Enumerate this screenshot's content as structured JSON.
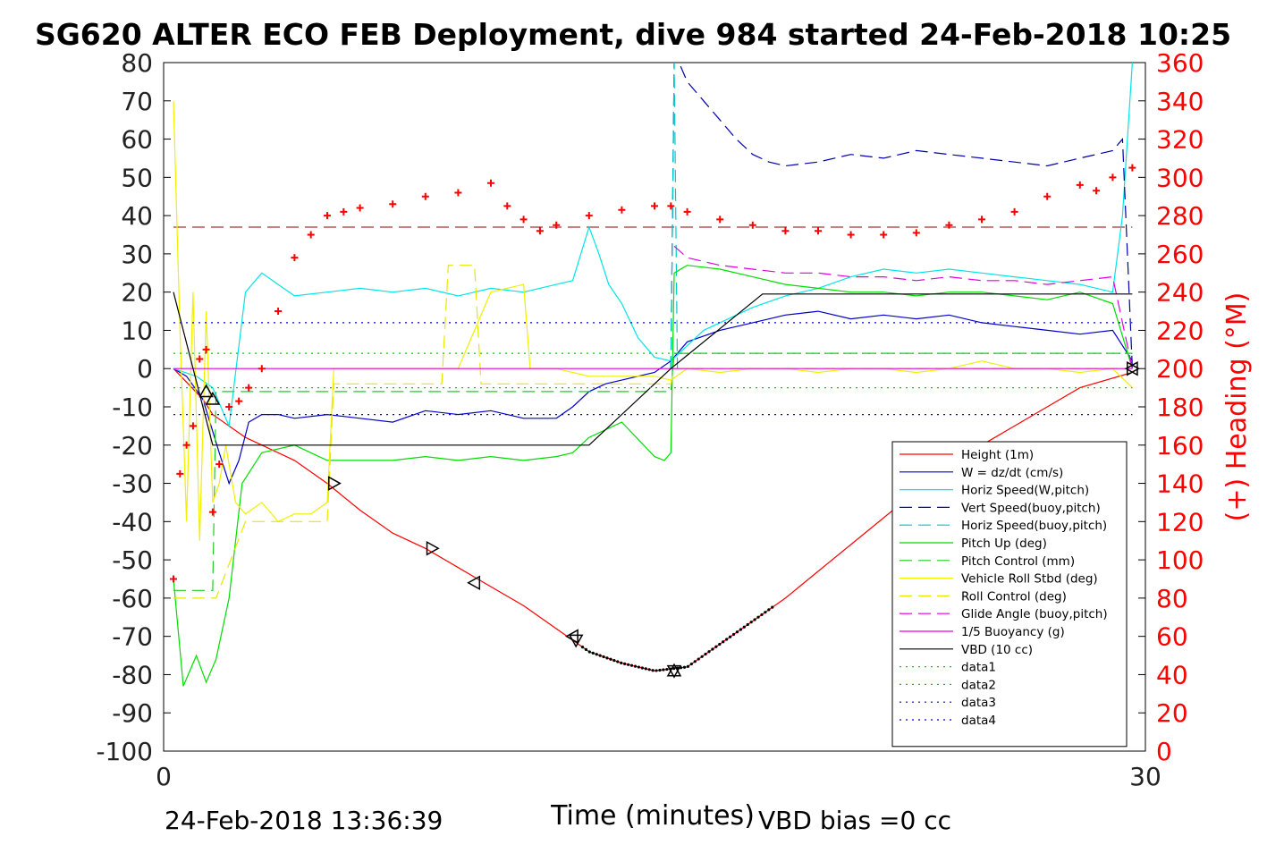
{
  "chart_data": {
    "type": "line",
    "title": "SG620 ALTER ECO FEB Deployment, dive 984 started 24-Feb-2018 10:25",
    "xlabel": "Time (minutes)",
    "ylabel_right": "(+) Heading (°M)",
    "xlim": [
      0,
      30
    ],
    "ylim": [
      -100,
      80
    ],
    "y2lim": [
      0,
      360
    ],
    "x_ticks": [
      "0",
      "30"
    ],
    "y_ticks": [
      "80",
      "70",
      "60",
      "50",
      "40",
      "30",
      "20",
      "10",
      "0",
      "-10",
      "-20",
      "-30",
      "-40",
      "-50",
      "-60",
      "-70",
      "-80",
      "-90",
      "-100"
    ],
    "y2_ticks": [
      "360",
      "340",
      "320",
      "300",
      "280",
      "260",
      "240",
      "220",
      "200",
      "180",
      "160",
      "140",
      "120",
      "100",
      "80",
      "60",
      "40",
      "20",
      "0"
    ],
    "footer_left": "24-Feb-2018 13:36:39",
    "footer_right": "VBD bias =0 cc",
    "legend_placement": "lower-right",
    "colors": {
      "red": "#ff0000",
      "blue": "#0000cc",
      "cyan": "#00e5e5",
      "green": "#00dd00",
      "yellow": "#f0f000",
      "magenta": "#e000e0",
      "black": "#000000",
      "darkred": "#8b0000"
    },
    "series": [
      {
        "name": "Height (1m)",
        "color": "#ff0000",
        "dash": "solid",
        "x": [
          0.3,
          1.2,
          1.5,
          2.5,
          4,
          5,
          6,
          7,
          8,
          9,
          10,
          11,
          12,
          13,
          14,
          15,
          16,
          17,
          18,
          19,
          20,
          21,
          22,
          23,
          24,
          25,
          26,
          27,
          28,
          29.6
        ],
        "y": [
          0,
          -8,
          -12,
          -18,
          -24,
          -30,
          -37,
          -43,
          -47,
          -52,
          -57,
          -62,
          -68,
          -74,
          -77,
          -79,
          -78,
          -72,
          -66,
          -60,
          -53,
          -46,
          -39,
          -32,
          -26,
          -20,
          -15,
          -10,
          -5,
          -1
        ]
      },
      {
        "name": "W = dz/dt (cm/s)",
        "color": "#0000cc",
        "dash": "solid",
        "x": [
          0.3,
          0.7,
          1.2,
          1.7,
          2.0,
          2.3,
          2.6,
          3,
          3.5,
          4,
          5,
          6,
          7,
          8,
          9,
          10,
          11,
          12,
          12.5,
          13,
          13.5,
          14,
          15,
          15.5,
          16,
          17,
          18,
          19,
          20,
          21,
          22,
          23,
          24,
          25,
          26,
          27,
          28,
          29,
          29.6
        ],
        "y": [
          0,
          -2,
          -8,
          -22,
          -30,
          -24,
          -14,
          -12,
          -12,
          -13,
          -12,
          -13,
          -14,
          -11,
          -12,
          -11,
          -13,
          -13,
          -10,
          -6,
          -4,
          -3,
          -1,
          2,
          7,
          10,
          12,
          14,
          15,
          13,
          14,
          13,
          14,
          12,
          11,
          10,
          9,
          10,
          2
        ]
      },
      {
        "name": "Horiz Speed(W,pitch)",
        "color": "#00e5e5",
        "dash": "solid",
        "x": [
          0.3,
          1.0,
          1.5,
          2.0,
          2.5,
          3,
          3.5,
          4,
          5,
          6,
          7,
          8,
          9,
          10,
          11,
          12,
          12.5,
          13,
          13.3,
          13.6,
          14,
          14.5,
          15,
          15.5,
          16,
          16.5,
          17,
          18,
          19,
          20,
          21,
          22,
          23,
          24,
          25,
          26,
          27,
          28,
          29,
          29.3,
          29.6
        ],
        "y": [
          0,
          -2,
          -5,
          -15,
          20,
          25,
          22,
          19,
          20,
          21,
          20,
          21,
          19,
          21,
          20,
          22,
          23,
          37,
          30,
          22,
          17,
          8,
          3,
          2,
          6,
          10,
          12,
          16,
          19,
          21,
          24,
          26,
          25,
          26,
          25,
          24,
          23,
          22,
          20,
          40,
          80
        ]
      },
      {
        "name": "Vert Speed(buoy,pitch)",
        "color": "#0000aa",
        "dash": "dash",
        "x": [
          15.5,
          15.6,
          15.7,
          16,
          16.5,
          17,
          17.5,
          18,
          18.5,
          19,
          20,
          21,
          22,
          23,
          24,
          25,
          26,
          27,
          28,
          28.5,
          29,
          29.3,
          29.6
        ],
        "y": [
          0,
          80,
          81,
          75,
          70,
          65,
          60,
          56,
          54,
          53,
          54,
          56,
          55,
          57,
          56,
          55,
          54,
          53,
          55,
          56,
          57,
          60,
          0
        ]
      },
      {
        "name": "Horiz Speed(buoy,pitch)",
        "color": "#00c8c8",
        "dash": "dash",
        "x": [
          15.5,
          15.6,
          15.7
        ],
        "y": [
          0,
          80,
          0
        ]
      },
      {
        "name": "Pitch Up (deg)",
        "color": "#00dd00",
        "dash": "solid",
        "x": [
          0.3,
          0.6,
          1.0,
          1.3,
          1.6,
          2.0,
          2.4,
          3,
          4,
          5,
          6,
          7,
          8,
          9,
          10,
          11,
          12,
          12.5,
          13,
          14,
          15,
          15.3,
          15.5,
          15.6,
          16,
          17,
          18,
          19,
          20,
          21,
          22,
          23,
          24,
          25,
          26,
          27,
          28,
          29,
          29.6
        ],
        "y": [
          -55,
          -83,
          -75,
          -82,
          -76,
          -60,
          -30,
          -22,
          -20,
          -24,
          -24,
          -24,
          -23,
          -24,
          -23,
          -24,
          -23,
          -22,
          -18,
          -14,
          -23,
          -24,
          -22,
          25,
          27,
          26,
          24,
          22,
          21,
          20,
          20,
          19,
          20,
          20,
          19,
          18,
          20,
          17,
          0
        ]
      },
      {
        "name": "Pitch Control (mm)",
        "color": "#22cc22",
        "dash": "dash",
        "x": [
          0.3,
          1.0,
          1.5,
          1.6,
          12,
          15.5,
          15.6,
          29.6
        ],
        "y": [
          -58,
          -58,
          -58,
          -6,
          -6,
          -6,
          4,
          4
        ]
      },
      {
        "name": "Vehicle Roll Stbd (deg)",
        "color": "#f0f000",
        "dash": "solid",
        "x": [
          0.3,
          0.5,
          0.7,
          0.9,
          1.1,
          1.3,
          1.5,
          1.7,
          1.9,
          2.2,
          2.5,
          3,
          3.5,
          4,
          4.5,
          5,
          5.2,
          6,
          7,
          8,
          9,
          10,
          11,
          11.2,
          12,
          13,
          14,
          15,
          15.5,
          16,
          17,
          18,
          19,
          20,
          21,
          22,
          23,
          24,
          25,
          26,
          27,
          28,
          29,
          29.6
        ],
        "y": [
          70,
          10,
          -40,
          20,
          -45,
          15,
          -35,
          -30,
          -20,
          -35,
          -38,
          -35,
          -40,
          -38,
          -38,
          -35,
          0,
          0,
          0,
          0,
          0,
          20,
          22,
          0,
          0,
          -2,
          -2,
          -2,
          -3,
          0,
          -1,
          0,
          0,
          -1,
          0,
          0,
          -1,
          0,
          2,
          0,
          0,
          -1,
          0,
          -5
        ]
      },
      {
        "name": "Roll Control (deg)",
        "color": "#e8e800",
        "dash": "dash",
        "x": [
          0.3,
          1.0,
          1.5,
          1.6,
          2.5,
          5,
          5.2,
          8.5,
          8.7,
          9.5,
          9.7,
          12,
          12.2,
          15.5,
          15.6,
          29.6
        ],
        "y": [
          -60,
          -60,
          -60,
          -60,
          -40,
          -40,
          -4,
          -4,
          27,
          27,
          -4,
          -4,
          -4,
          -4,
          0,
          0
        ]
      },
      {
        "name": "Glide Angle (buoy,pitch)",
        "color": "#e000e0",
        "dash": "dash",
        "x": [
          15.6,
          16,
          17,
          18,
          19,
          20,
          21,
          22,
          23,
          24,
          25,
          26,
          27,
          28,
          29,
          29.6
        ],
        "y": [
          32,
          29,
          27,
          26,
          25,
          25,
          24,
          24,
          23,
          24,
          23,
          23,
          22,
          23,
          24,
          0
        ]
      },
      {
        "name": "1/5 Buoyancy (g)",
        "color": "#e000e0",
        "dash": "solid",
        "x": [
          0.3,
          29.6
        ],
        "y": [
          0,
          0
        ]
      },
      {
        "name": "VBD (10 cc)",
        "color": "#000000",
        "dash": "solid",
        "x": [
          0.3,
          1.5,
          10.3,
          13,
          15.5,
          18.3,
          29.6
        ],
        "y": [
          20,
          -20,
          -20,
          -20,
          0,
          19.5,
          19.5
        ]
      },
      {
        "name": "data1",
        "color": "#00cc00",
        "dash": "dot",
        "x": [
          0.3,
          29.6
        ],
        "y": [
          -5,
          -5
        ]
      },
      {
        "name": "data2",
        "color": "#00cc00",
        "dash": "dot",
        "x": [
          0.3,
          29.6
        ],
        "y": [
          4,
          4
        ]
      },
      {
        "name": "data3",
        "color": "#0000cc",
        "dash": "dot",
        "x": [
          0.3,
          29.6
        ],
        "y": [
          12,
          12
        ]
      },
      {
        "name": "data4",
        "color": "#0000cc",
        "dash": "dot",
        "x": [
          0.3,
          29.6
        ],
        "y": [
          -12,
          -12
        ]
      }
    ],
    "heading_reference": {
      "y2": 274,
      "x": [
        0.3,
        29.6
      ],
      "color": "#8b0000",
      "dash": "dash"
    },
    "heading_series": {
      "axis": "right",
      "marker": "+",
      "color": "#ff0000",
      "x": [
        0.3,
        0.5,
        0.7,
        0.9,
        1.1,
        1.3,
        1.5,
        1.7,
        2,
        2.3,
        2.6,
        3,
        3.5,
        4,
        4.5,
        5,
        5.5,
        6,
        7,
        8,
        9,
        10,
        10.5,
        11,
        11.5,
        12,
        13,
        14,
        15,
        15.5,
        16,
        17,
        18,
        19,
        20,
        21,
        22,
        23,
        24,
        25,
        26,
        27,
        28,
        28.5,
        29,
        29.6
      ],
      "y2": [
        90,
        145,
        160,
        170,
        205,
        210,
        125,
        150,
        180,
        183,
        190,
        200,
        230,
        258,
        270,
        280,
        282,
        284,
        286,
        290,
        292,
        297,
        285,
        278,
        272,
        275,
        280,
        283,
        285,
        285,
        282,
        278,
        275,
        272,
        272,
        270,
        270,
        271,
        275,
        278,
        282,
        290,
        296,
        293,
        300,
        305
      ]
    },
    "event_markers": [
      {
        "x": 1.3,
        "y": -6,
        "shape": "triangle-up"
      },
      {
        "x": 1.5,
        "y": -8,
        "shape": "triangle-up"
      },
      {
        "x": 5.2,
        "y": -30,
        "shape": "triangle-right"
      },
      {
        "x": 8.2,
        "y": -47,
        "shape": "triangle-right"
      },
      {
        "x": 9.5,
        "y": -56,
        "shape": "triangle-left"
      },
      {
        "x": 12.5,
        "y": -70,
        "shape": "triangle-left"
      },
      {
        "x": 12.6,
        "y": -71,
        "shape": "triangle-down"
      },
      {
        "x": 15.6,
        "y": -79,
        "shape": "triangle-up"
      },
      {
        "x": 15.6,
        "y": -79,
        "shape": "triangle-down"
      },
      {
        "x": 29.6,
        "y": 0,
        "shape": "triangle-left"
      },
      {
        "x": 29.6,
        "y": 0,
        "shape": "triangle-right"
      }
    ]
  }
}
